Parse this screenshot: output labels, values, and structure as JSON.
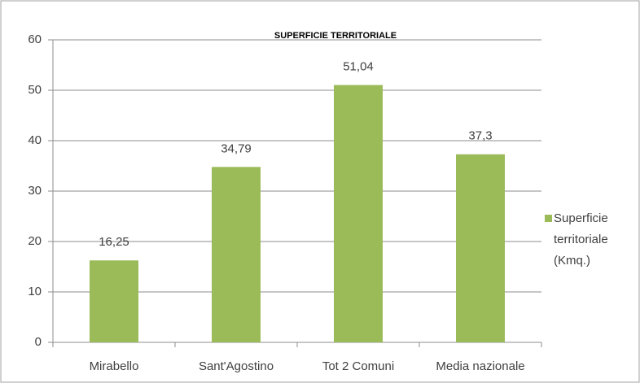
{
  "chart_data": {
    "type": "bar",
    "title": "SUPERFICIE TERRITORIALE",
    "categories": [
      "Mirabello",
      "Sant'Agostino",
      "Tot 2 Comuni",
      "Media nazionale"
    ],
    "series": [
      {
        "name": "Superficie territoriale (Kmq.)",
        "color": "#9bbb59",
        "values": [
          16.25,
          34.79,
          51.04,
          37.3
        ],
        "value_labels": [
          "16,25",
          "34,79",
          "51,04",
          "37,3"
        ]
      }
    ],
    "ylim": [
      0,
      60
    ],
    "yticks": [
      0,
      10,
      20,
      30,
      40,
      50,
      60
    ],
    "grid": true,
    "legend": "right"
  }
}
